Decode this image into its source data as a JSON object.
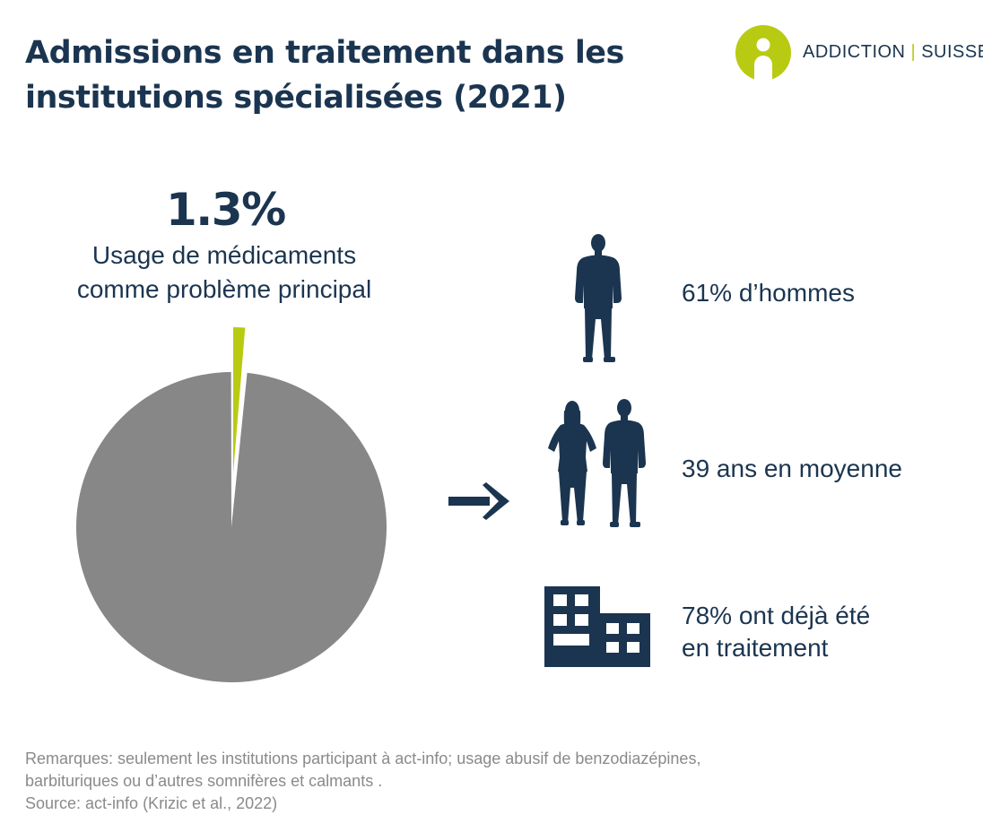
{
  "title": {
    "line1": "Admissions en traitement dans les",
    "line2": "institutions spécialisées (2021)"
  },
  "logo": {
    "left": "ADDICTION",
    "right": "SUISSE",
    "colors": {
      "mark": "#b8cb12",
      "text": "#1b3550"
    }
  },
  "pie_label": {
    "value": "1.3%",
    "line1": "Usage de médicaments",
    "line2": "comme problème principal"
  },
  "stats": {
    "men": {
      "text": "61% d’hommes",
      "icon": "man-silhouette-icon"
    },
    "age": {
      "text": "39 ans en moyenne",
      "icon": "woman-and-man-icon"
    },
    "treated": {
      "line1": "78% ont déjà été",
      "line2": "en traitement",
      "icon": "building-icon"
    }
  },
  "notes": {
    "line1": "Remarques: seulement les institutions participant à act-info; usage abusif de benzodiazépines,",
    "line2": "barbituriques ou d’autres somnifères et calmants .",
    "source": "Source: act-info (Krizic et al., 2022)"
  },
  "colors": {
    "navy": "#1b3550",
    "highlight": "#b8cb12",
    "rest": "#878787",
    "notes": "#8a8a8a"
  },
  "chart_data": {
    "type": "pie",
    "slices": [
      {
        "value": 1.3,
        "color": "#b8cb12",
        "exploded": true
      },
      {
        "value": 98.7,
        "color": "#878787",
        "exploded": false
      }
    ],
    "annotations": [
      "1.3%",
      "Usage de médicaments comme problème principal"
    ]
  }
}
